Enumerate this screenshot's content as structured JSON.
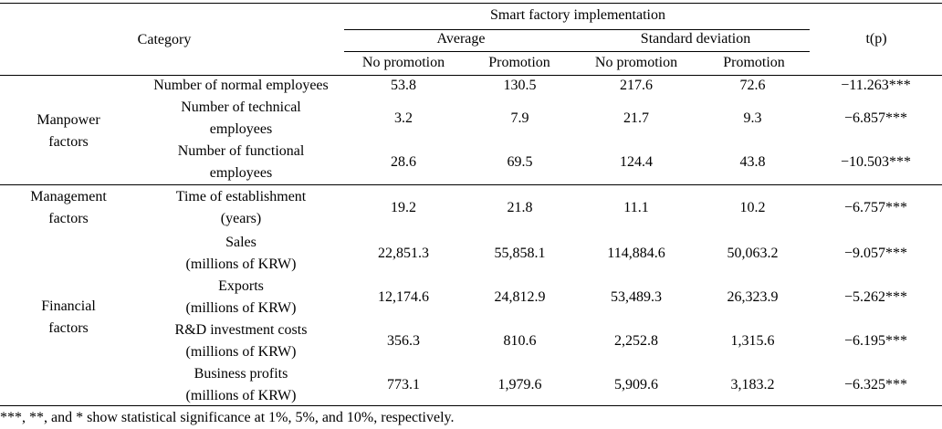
{
  "header": {
    "category": "Category",
    "group": "Smart factory implementation",
    "average": "Average",
    "std_dev": "Standard deviation",
    "tp": "t(p)",
    "no_promotion": "No promotion",
    "promotion": "Promotion"
  },
  "groups": {
    "manpower": [
      "Manpower",
      "factors"
    ],
    "management": [
      "Management",
      "factors"
    ],
    "financial": [
      "Financial",
      "factors"
    ]
  },
  "rows": [
    {
      "label": [
        "Number of normal employees"
      ],
      "avg_no": "53.8",
      "avg_pro": "130.5",
      "sd_no": "217.6",
      "sd_pro": "72.6",
      "t": "−11.263***"
    },
    {
      "label": [
        "Number of technical",
        "employees"
      ],
      "avg_no": "3.2",
      "avg_pro": "7.9",
      "sd_no": "21.7",
      "sd_pro": "9.3",
      "t": "−6.857***"
    },
    {
      "label": [
        "Number of functional",
        "employees"
      ],
      "avg_no": "28.6",
      "avg_pro": "69.5",
      "sd_no": "124.4",
      "sd_pro": "43.8",
      "t": "−10.503***"
    },
    {
      "label": [
        "Time of establishment",
        "(years)"
      ],
      "avg_no": "19.2",
      "avg_pro": "21.8",
      "sd_no": "11.1",
      "sd_pro": "10.2",
      "t": "−6.757***"
    },
    {
      "label": [
        "Sales",
        "(millions of KRW)"
      ],
      "avg_no": "22,851.3",
      "avg_pro": "55,858.1",
      "sd_no": "114,884.6",
      "sd_pro": "50,063.2",
      "t": "−9.057***"
    },
    {
      "label": [
        "Exports",
        "(millions of KRW)"
      ],
      "avg_no": "12,174.6",
      "avg_pro": "24,812.9",
      "sd_no": "53,489.3",
      "sd_pro": "26,323.9",
      "t": "−5.262***"
    },
    {
      "label": [
        "R&D investment costs",
        "(millions of KRW)"
      ],
      "avg_no": "356.3",
      "avg_pro": "810.6",
      "sd_no": "2,252.8",
      "sd_pro": "1,315.6",
      "t": "−6.195***"
    },
    {
      "label": [
        "Business profits",
        "(millions of KRW)"
      ],
      "avg_no": "773.1",
      "avg_pro": "1,979.6",
      "sd_no": "5,909.6",
      "sd_pro": "3,183.2",
      "t": "−6.325***"
    }
  ],
  "footnote": "***, **, and * show statistical significance at 1%, 5%, and 10%, respectively."
}
